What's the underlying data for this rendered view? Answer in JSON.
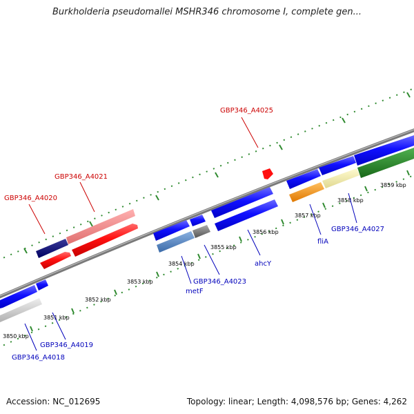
{
  "title": "Burkholderia pseudomallei MSHR346 chromosome I, complete gen...",
  "footer": {
    "accession": "Accession: NC_012695",
    "summary": "Topology: linear; Length: 4,098,576 bp; Genes: 4,262"
  },
  "colors": {
    "backbone": "#7f7f7f",
    "ticks": "#2f8a2f",
    "forward_gene_label": "#cc0000",
    "reverse_gene_label": "#0000bb"
  },
  "scale_labels": [
    "3850 kbp",
    "3851 kbp",
    "3852 kbp",
    "3853 kbp",
    "3854 kbp",
    "3855 kbp",
    "3856 kbp",
    "3857 kbp",
    "3858 kbp",
    "3859 kbp"
  ],
  "gene_labels": {
    "a4020": "GBP346_A4020",
    "a4021": "GBP346_A4021",
    "a4025": "GBP346_A4025",
    "a4018": "GBP346_A4018",
    "a4019": "GBP346_A4019",
    "a4023": "GBP346_A4023",
    "a4027": "GBP346_A4027",
    "metF": "metF",
    "ahcY": "ahcY",
    "fliA": "fliA"
  }
}
